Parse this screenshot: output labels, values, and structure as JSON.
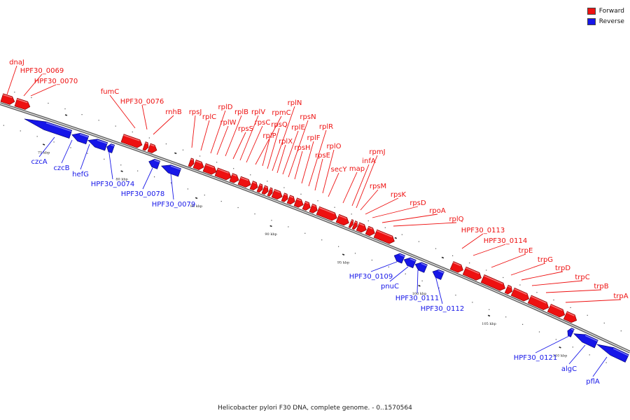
{
  "legend": {
    "forward_label": "Forward",
    "reverse_label": "Reverse",
    "forward_color": "#ee1111",
    "reverse_color": "#1616e8"
  },
  "caption": "Helicobacter pylori F30 DNA, complete genome. - 0..1570564",
  "scale_labels": [
    "75 kbp",
    "80 kbp",
    "85 kbp",
    "90 kbp",
    "95 kbp",
    "100 kbp",
    "105 kbp",
    "110 kbp"
  ],
  "forward_genes": [
    "dnaJ",
    "HPF30_0069",
    "HPF30_0070",
    "fumC",
    "HPF30_0076",
    "rnhB",
    "rpsJ",
    "rplC",
    "rplD",
    "rplW",
    "rplB",
    "rpsS",
    "rplV",
    "rpsC",
    "rpmC",
    "rplP",
    "rpsQ",
    "rplN",
    "rplX",
    "rplE",
    "rpsN",
    "rpsH",
    "rplF",
    "rplR",
    "rpsE",
    "rplO",
    "secY",
    "map",
    "infA",
    "rpmJ",
    "rpsM",
    "rpsK",
    "rpsD",
    "rpoA",
    "rplQ",
    "HPF30_0113",
    "HPF30_0114",
    "trpE",
    "trpG",
    "trpD",
    "trpC",
    "trpB",
    "trpA"
  ],
  "reverse_genes": [
    "czcA",
    "czcB",
    "hefG",
    "HPF30_0074",
    "HPF30_0078",
    "HPF30_0079",
    "HPF30_0109",
    "pnuC",
    "HPF30_0111",
    "HPF30_0112",
    "HPF30_0121",
    "algC",
    "pflA"
  ]
}
